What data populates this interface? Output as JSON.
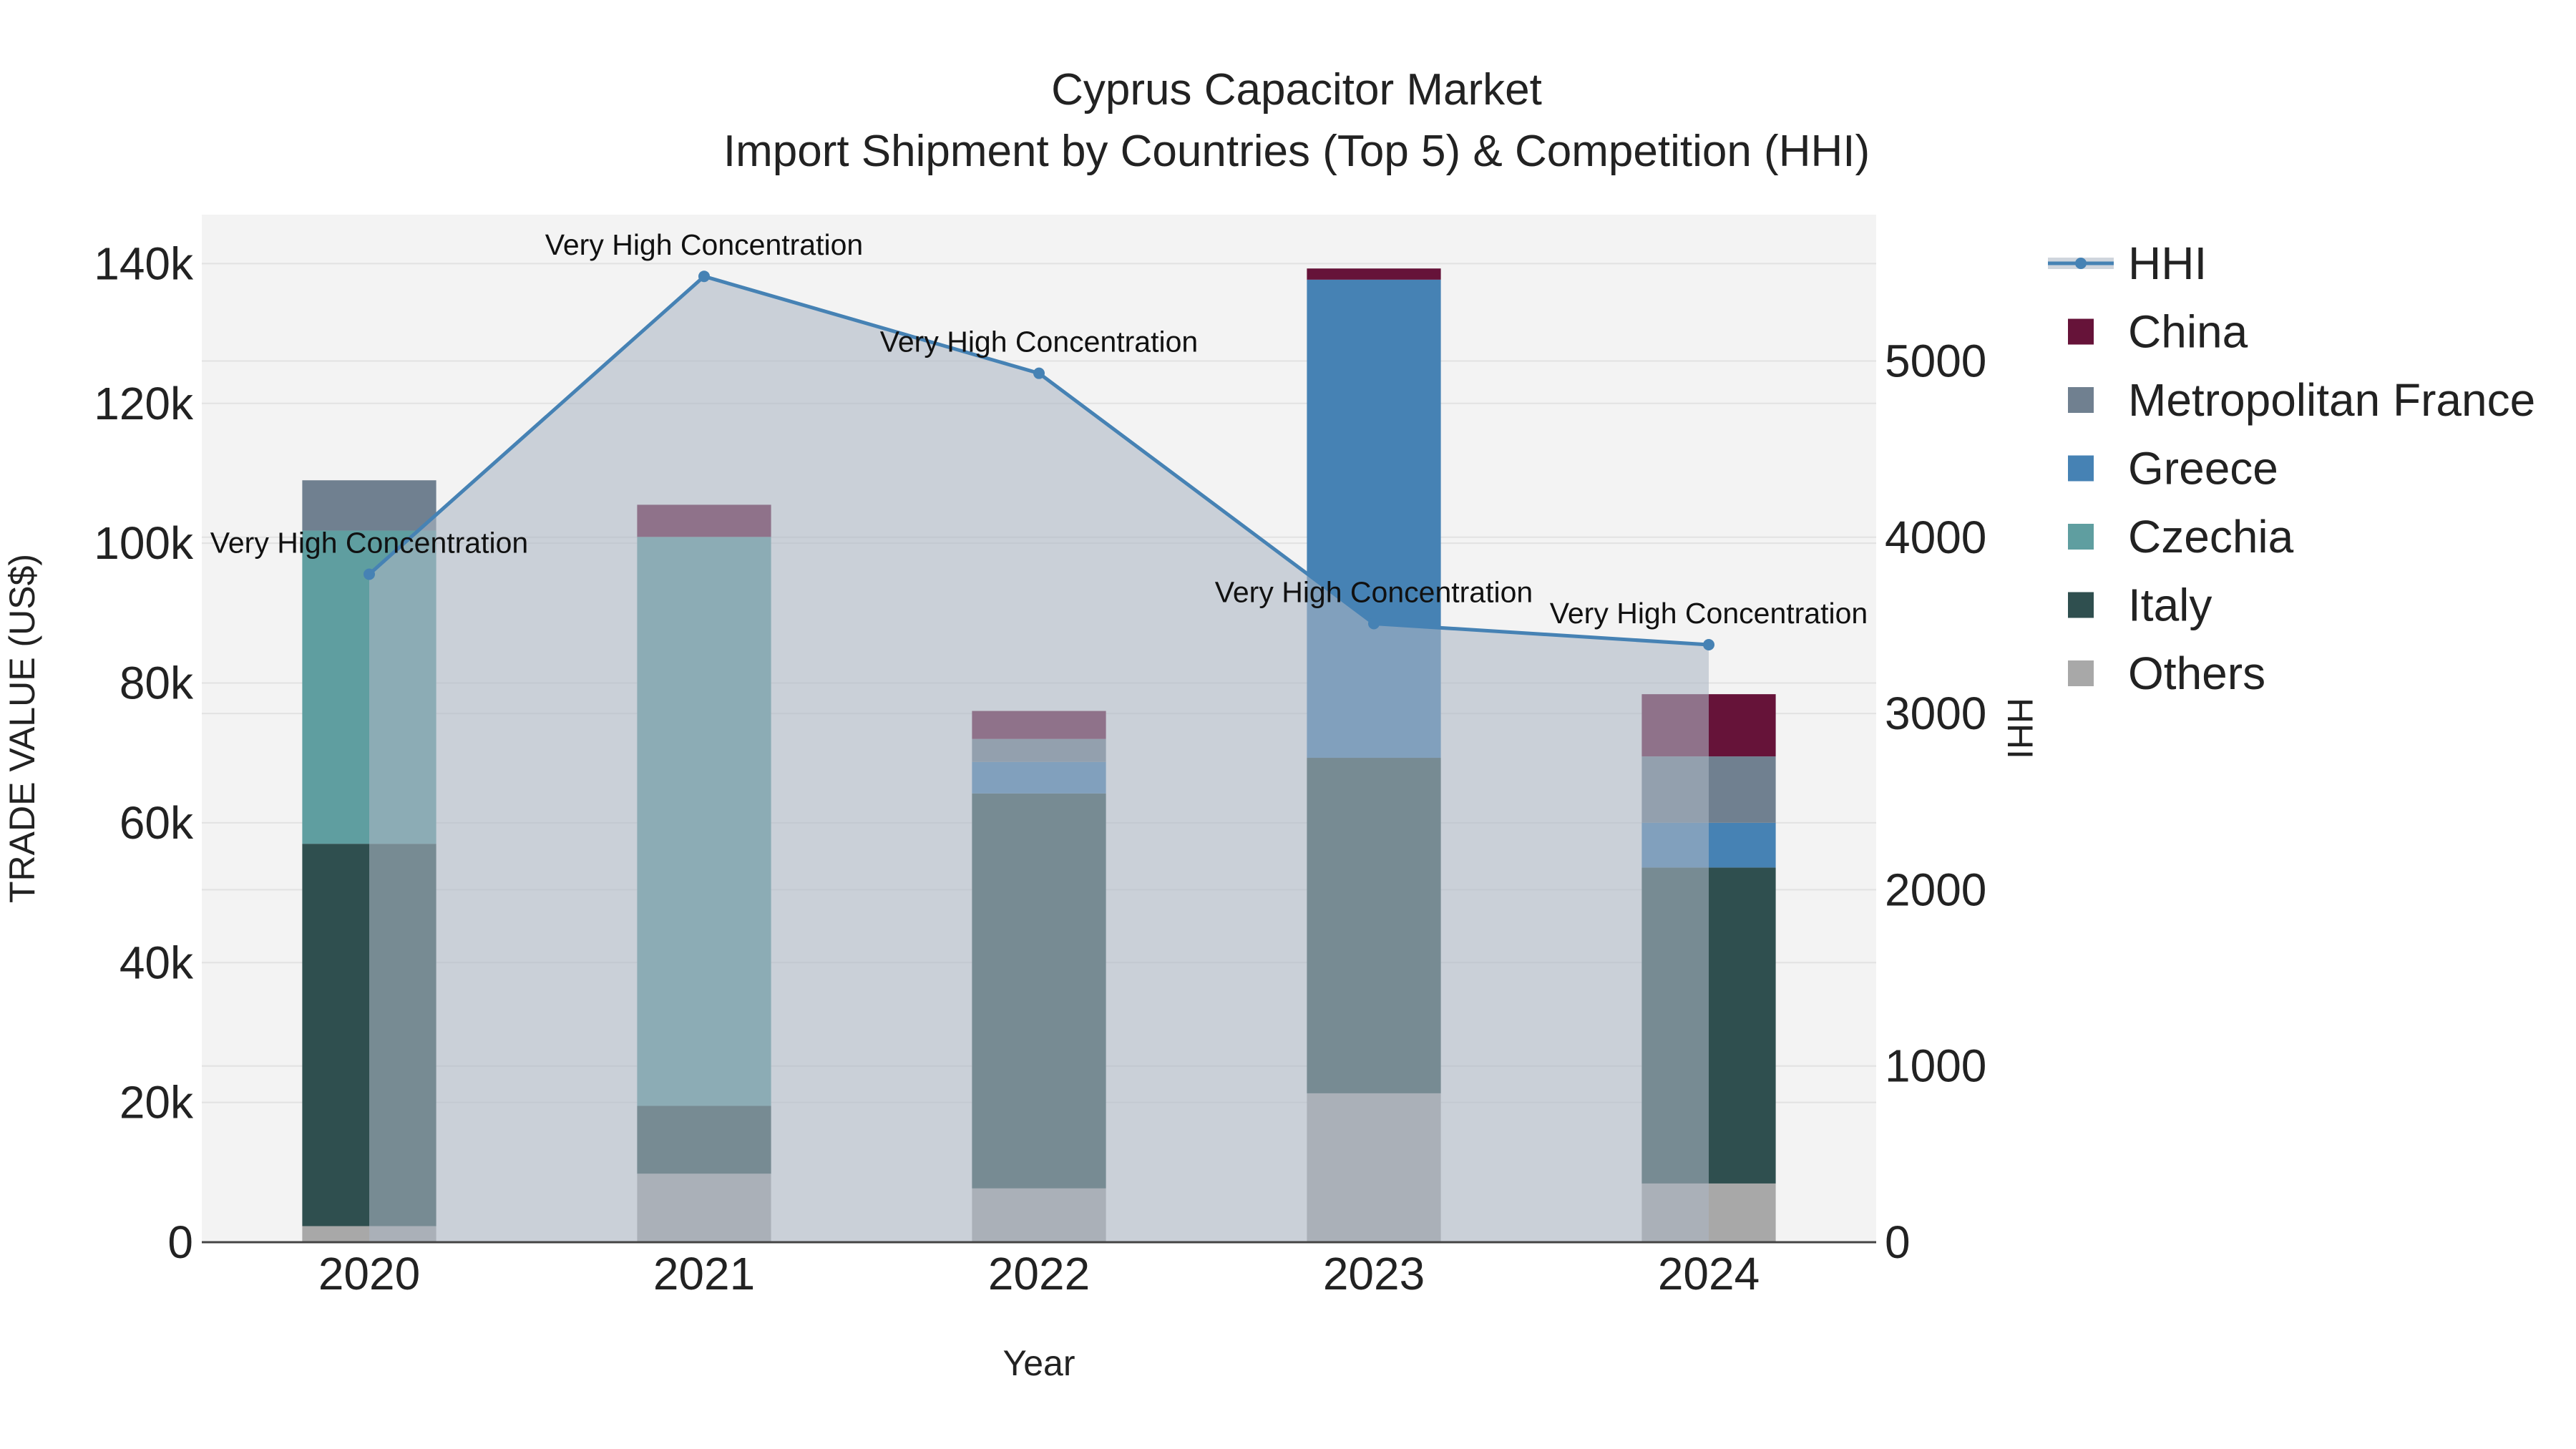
{
  "chart_data": {
    "type": "bar",
    "barmode": "stack",
    "title": "Cyprus Capacitor Market",
    "subtitle": "Import Shipment by Countries (Top 5) & Competition (HHI)",
    "xlabel": "Year",
    "ylabel": "TRADE VALUE (US$)",
    "y2label": "HHI",
    "categories": [
      "2020",
      "2021",
      "2022",
      "2023",
      "2024"
    ],
    "ylim": [
      0,
      147000
    ],
    "y2lim": [
      0,
      5830
    ],
    "yticks": [
      {
        "value": 0,
        "label": "0"
      },
      {
        "value": 20000,
        "label": "20k"
      },
      {
        "value": 40000,
        "label": "40k"
      },
      {
        "value": 60000,
        "label": "60k"
      },
      {
        "value": 80000,
        "label": "80k"
      },
      {
        "value": 100000,
        "label": "100k"
      },
      {
        "value": 120000,
        "label": "120k"
      },
      {
        "value": 140000,
        "label": "140k"
      }
    ],
    "y2ticks": [
      {
        "value": 0,
        "label": "0"
      },
      {
        "value": 1000,
        "label": "1000"
      },
      {
        "value": 2000,
        "label": "2000"
      },
      {
        "value": 3000,
        "label": "3000"
      },
      {
        "value": 4000,
        "label": "4000"
      },
      {
        "value": 5000,
        "label": "5000"
      }
    ],
    "series": [
      {
        "name": "Others",
        "color": "#a8a8a8",
        "values": [
          2300,
          9800,
          7700,
          21300,
          8400
        ]
      },
      {
        "name": "Italy",
        "color": "#2f4f4f",
        "values": [
          54700,
          9700,
          56500,
          48000,
          45200
        ]
      },
      {
        "name": "Czechia",
        "color": "#5f9ea0",
        "values": [
          44800,
          81400,
          0,
          0,
          0
        ]
      },
      {
        "name": "Greece",
        "color": "#4682b4",
        "values": [
          0,
          0,
          4500,
          68400,
          6400
        ]
      },
      {
        "name": "Metropolitan France",
        "color": "#708090",
        "values": [
          7200,
          0,
          3300,
          0,
          9500
        ]
      },
      {
        "name": "China",
        "color": "#661339",
        "values": [
          0,
          4600,
          4000,
          1600,
          8900
        ]
      }
    ],
    "hhi": {
      "name": "HHI",
      "color": "#4682b4",
      "values": [
        3790,
        5480,
        4930,
        3510,
        3390
      ],
      "annotations": [
        "Very High Concentration",
        "Very High Concentration",
        "Very High Concentration",
        "Very High Concentration",
        "Very High Concentration"
      ]
    },
    "legend": {
      "position": "right",
      "items": [
        {
          "name": "HHI",
          "kind": "line",
          "color": "#4682b4"
        },
        {
          "name": "China",
          "kind": "box",
          "color": "#661339"
        },
        {
          "name": "Metropolitan France",
          "kind": "box",
          "color": "#708090"
        },
        {
          "name": "Greece",
          "kind": "box",
          "color": "#4682b4"
        },
        {
          "name": "Czechia",
          "kind": "box",
          "color": "#5f9ea0"
        },
        {
          "name": "Italy",
          "kind": "box",
          "color": "#2f4f4f"
        },
        {
          "name": "Others",
          "kind": "box",
          "color": "#a8a8a8"
        }
      ]
    }
  }
}
